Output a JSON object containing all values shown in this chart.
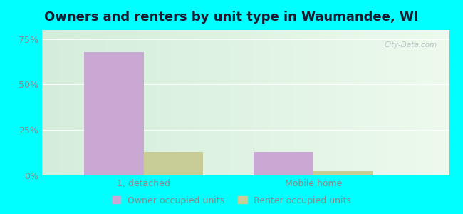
{
  "title": "Owners and renters by unit type in Waumandee, WI",
  "categories": [
    "1, detached",
    "Mobile home"
  ],
  "owner_values": [
    68.0,
    13.0
  ],
  "renter_values": [
    13.0,
    2.5
  ],
  "owner_color": "#c9a8d4",
  "renter_color": "#c8cc96",
  "yticks": [
    0,
    25,
    50,
    75
  ],
  "ytick_labels": [
    "0%",
    "25%",
    "50%",
    "75%"
  ],
  "ylim": [
    0,
    80
  ],
  "bar_width": 0.35,
  "bg_color_left": "#d4edda",
  "bg_color_right": "#edfaed",
  "outer_background": "#00ffff",
  "watermark": "City-Data.com",
  "legend_labels": [
    "Owner occupied units",
    "Renter occupied units"
  ],
  "title_fontsize": 13,
  "axis_fontsize": 9,
  "legend_fontsize": 9,
  "title_color": "#1a1a2e",
  "tick_color": "#888888"
}
